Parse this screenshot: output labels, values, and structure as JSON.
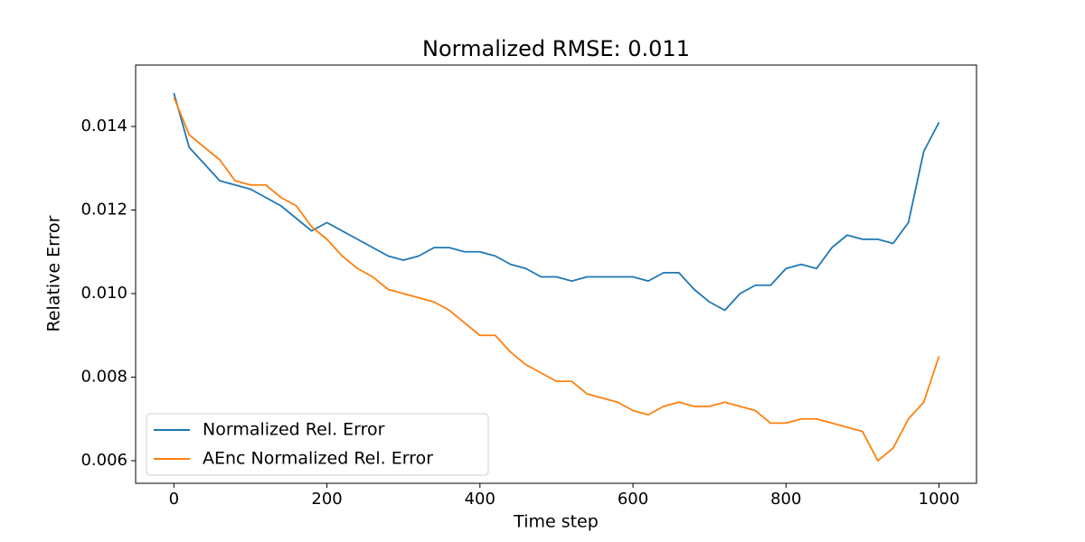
{
  "chart_data": {
    "type": "line",
    "title": "Normalized RMSE: 0.011",
    "x_label": "Time step",
    "y_label": "Relative Error",
    "x": [
      0,
      20,
      40,
      60,
      80,
      100,
      120,
      140,
      160,
      180,
      200,
      220,
      240,
      260,
      280,
      300,
      320,
      340,
      360,
      380,
      400,
      420,
      440,
      460,
      480,
      500,
      520,
      540,
      560,
      580,
      600,
      620,
      640,
      660,
      680,
      700,
      720,
      740,
      760,
      780,
      800,
      820,
      840,
      860,
      880,
      900,
      920,
      940,
      960,
      980,
      1000
    ],
    "series": [
      {
        "name": "Normalized Rel. Error",
        "color": "#1f77b4",
        "values": [
          0.0148,
          0.0135,
          0.0131,
          0.0127,
          0.0126,
          0.0125,
          0.0123,
          0.0121,
          0.0118,
          0.0115,
          0.0117,
          0.0115,
          0.0113,
          0.0111,
          0.0109,
          0.0108,
          0.0109,
          0.0111,
          0.0111,
          0.011,
          0.011,
          0.0109,
          0.0107,
          0.0106,
          0.0104,
          0.0104,
          0.0103,
          0.0104,
          0.0104,
          0.0104,
          0.0104,
          0.0103,
          0.0105,
          0.0105,
          0.0101,
          0.0098,
          0.0096,
          0.01,
          0.0102,
          0.0102,
          0.0106,
          0.0107,
          0.0106,
          0.0111,
          0.0114,
          0.0113,
          0.0113,
          0.0112,
          0.0117,
          0.0134,
          0.0141
        ]
      },
      {
        "name": "AEnc Normalized Rel. Error",
        "color": "#ff7f0e",
        "values": [
          0.0147,
          0.0138,
          0.0135,
          0.0132,
          0.0127,
          0.0126,
          0.0126,
          0.0123,
          0.0121,
          0.0116,
          0.0113,
          0.0109,
          0.0106,
          0.0104,
          0.0101,
          0.01,
          0.0099,
          0.0098,
          0.0096,
          0.0093,
          0.009,
          0.009,
          0.0086,
          0.0083,
          0.0081,
          0.0079,
          0.0079,
          0.0076,
          0.0075,
          0.0074,
          0.0072,
          0.0071,
          0.0073,
          0.0074,
          0.0073,
          0.0073,
          0.0074,
          0.0073,
          0.0072,
          0.0069,
          0.0069,
          0.007,
          0.007,
          0.0069,
          0.0068,
          0.0067,
          0.006,
          0.0063,
          0.007,
          0.0074,
          0.0085
        ]
      }
    ],
    "xlim": [
      -50,
      1049
    ],
    "ylim": [
      0.00546,
      0.01547
    ],
    "xticks": [
      0,
      200,
      400,
      600,
      800,
      1000
    ],
    "yticks": [
      0.006,
      0.008,
      {
        "value": 0.01,
        "label": "0.010"
      },
      0.012,
      0.014
    ],
    "grid": false,
    "legend": "lower left"
  }
}
